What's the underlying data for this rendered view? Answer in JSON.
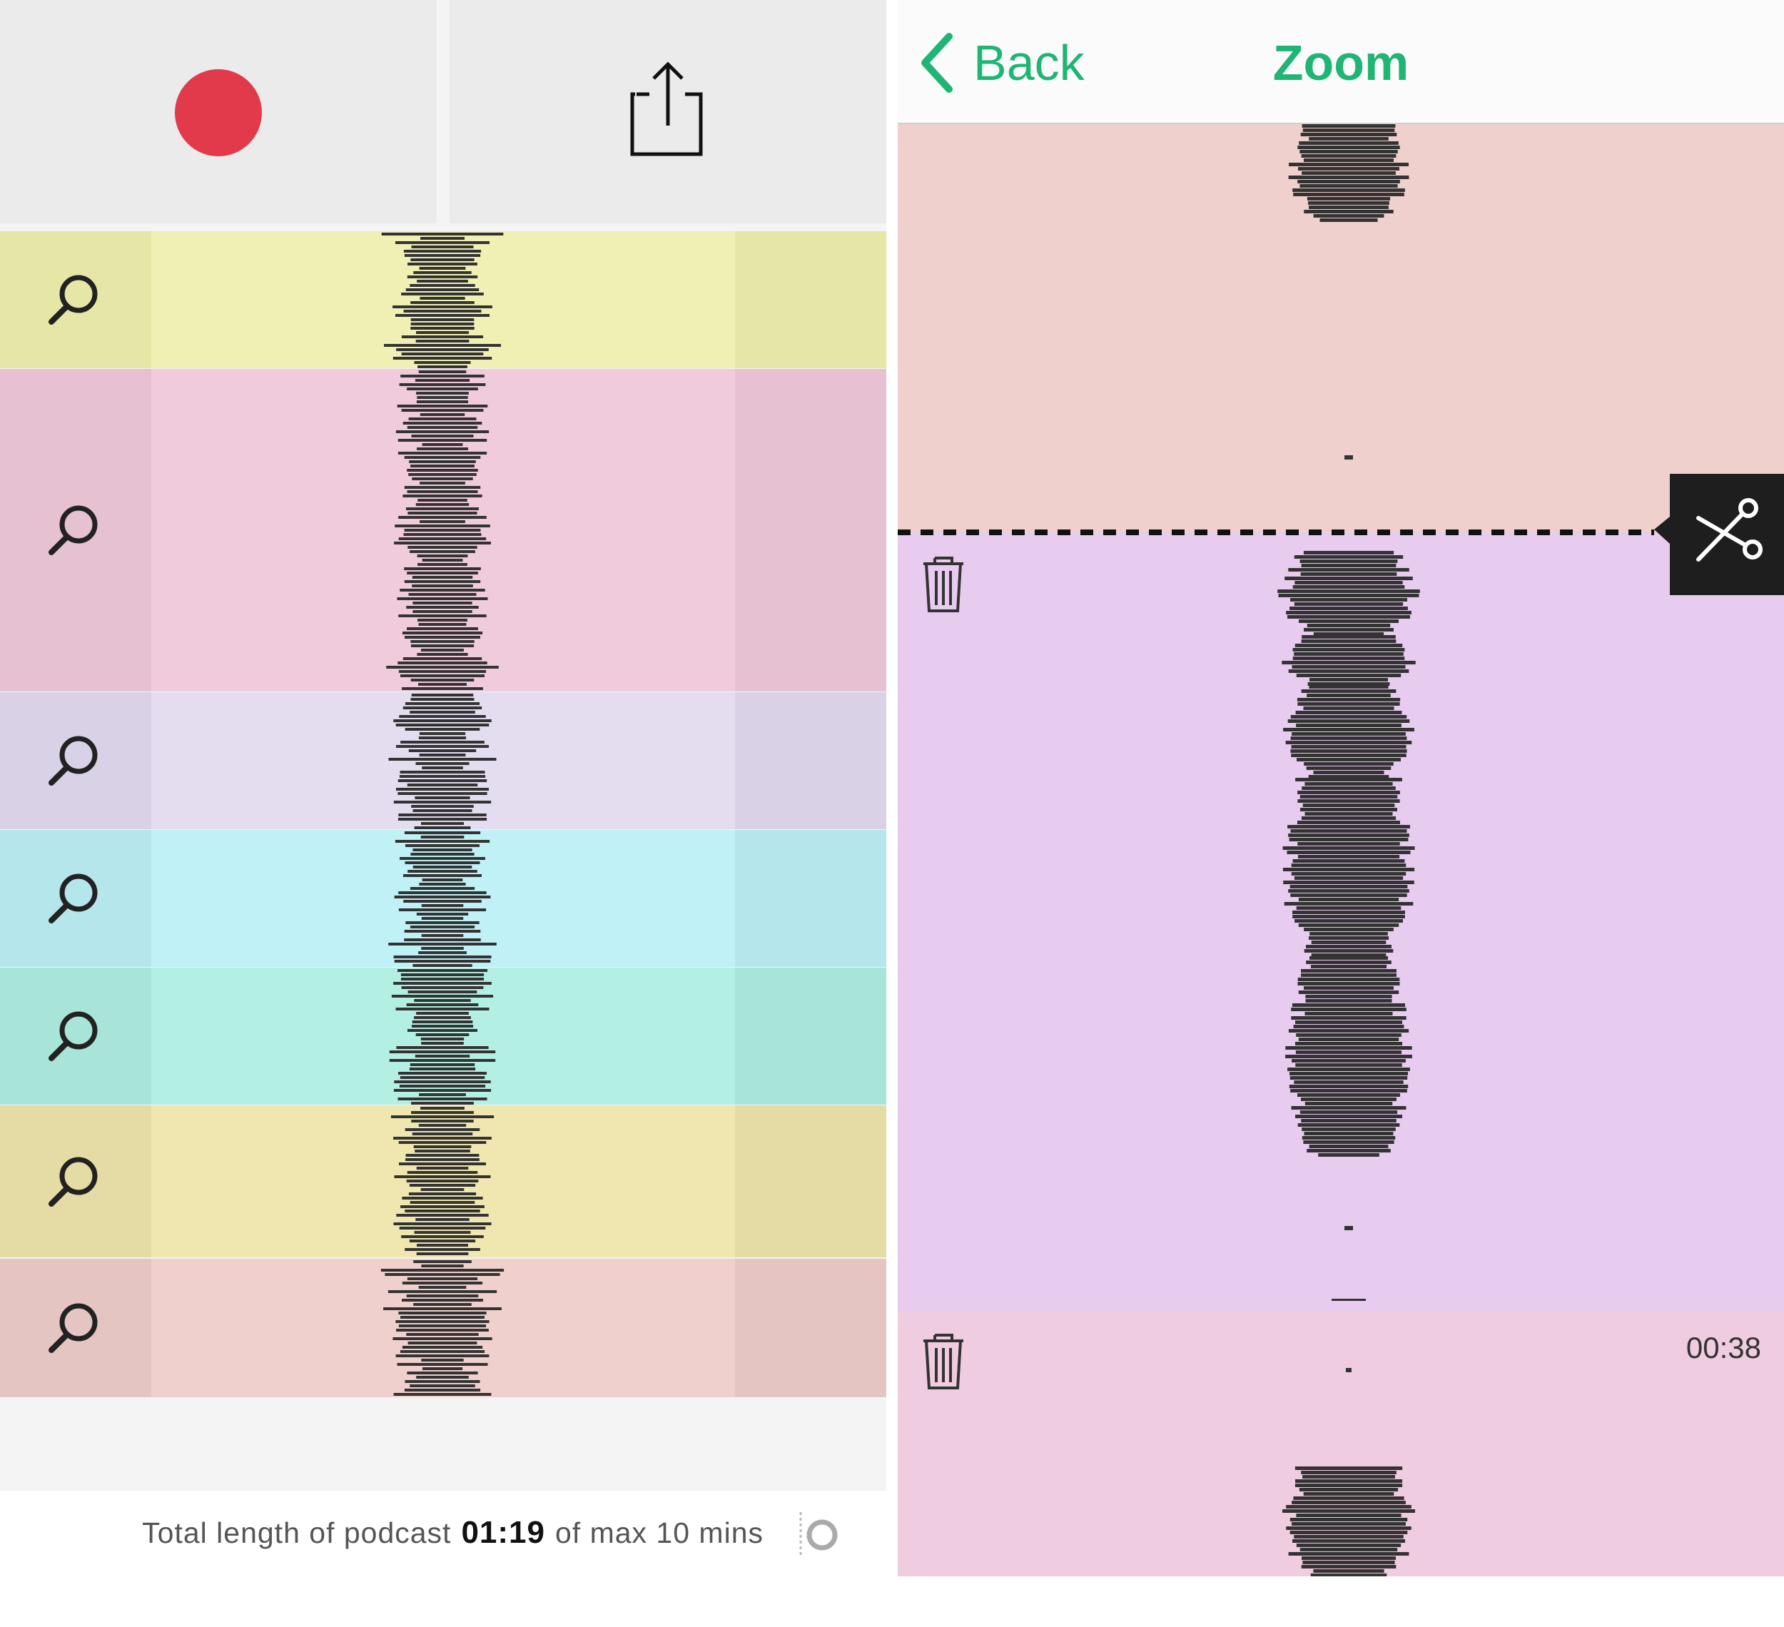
{
  "left_screen": {
    "record_button": {
      "icon": "record-icon",
      "color": "#e23a4b"
    },
    "share_button": {
      "icon": "share-icon"
    },
    "clips": [
      {
        "icon": "search-icon",
        "handle_icon": "drag-handle-icon",
        "color": "#f0f0b4",
        "side_color": "#e6e6a6"
      },
      {
        "icon": "search-icon",
        "handle_icon": "drag-handle-icon",
        "color": "#f0cbdc",
        "side_color": "#e6c1d2"
      },
      {
        "icon": "search-icon",
        "handle_icon": "drag-handle-icon",
        "color": "#e4ddf0",
        "side_color": "#d9d2e6"
      },
      {
        "icon": "search-icon",
        "handle_icon": "drag-handle-icon",
        "color": "#c0f1f6",
        "side_color": "#b5e6eb"
      },
      {
        "icon": "search-icon",
        "handle_icon": "drag-handle-icon",
        "color": "#b3f0e3",
        "side_color": "#a8e5d8"
      },
      {
        "icon": "search-icon",
        "handle_icon": "drag-handle-icon",
        "color": "#f0e6af",
        "side_color": "#e5dba4"
      },
      {
        "icon": "search-icon",
        "handle_icon": "drag-handle-icon",
        "color": "#f0d0cc",
        "side_color": "#e5c5c1"
      }
    ],
    "footer": {
      "prefix": "Total length of podcast",
      "total": "01:19",
      "suffix": "of max 10 mins",
      "icon": "level-meter-icon"
    }
  },
  "right_screen": {
    "nav": {
      "back_label": "Back",
      "back_icon": "chevron-left-icon",
      "title": "Zoom"
    },
    "segments": [
      {
        "color": "#f0d0cc"
      },
      {
        "color": "#e8ccf0",
        "icon": "trash-icon"
      },
      {
        "color": "#f0cce0",
        "icon": "trash-icon",
        "time": "00:38"
      }
    ],
    "cut_tool": {
      "icon": "scissors-icon"
    }
  },
  "colors": {
    "accent": "#1fb574",
    "waveform": "#333333",
    "record": "#e23a4b"
  }
}
